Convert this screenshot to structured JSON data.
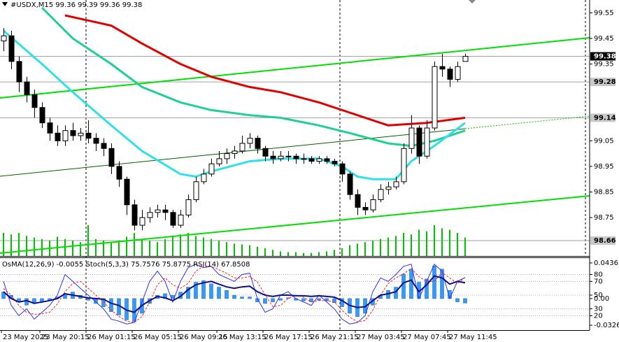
{
  "chart_data": [
    {
      "type": "candlestick",
      "title": "#USDX,M15  99.36 99.39 99.36 99.38",
      "categories": [
        "23 May 2025",
        null,
        null,
        null,
        null,
        "23 May 20:15",
        null,
        null,
        null,
        null,
        null,
        "26 May 01:15",
        null,
        null,
        null,
        null,
        null,
        "26 May 05:15",
        null,
        null,
        null,
        null,
        null,
        "26 May 09:15",
        null,
        null,
        null,
        null,
        "26 May 13:15",
        null,
        null,
        null,
        null,
        null,
        "26 May 17:15",
        null,
        null,
        null,
        null,
        null,
        "26 May 21:15",
        null,
        null,
        null,
        null,
        null,
        "27 May 03:45",
        null,
        null,
        null,
        null,
        null,
        "27 May 07:45",
        null,
        null,
        null,
        null,
        null,
        "27 May 11:45",
        null,
        null
      ],
      "open": [
        99.44,
        99.46,
        99.36,
        99.28,
        99.23,
        99.18,
        99.12,
        99.08,
        99.05,
        99.09,
        99.07,
        99.08,
        99.06,
        99.04,
        99.02,
        98.95,
        98.9,
        98.8,
        98.72,
        98.75,
        98.77,
        98.78,
        98.77,
        98.72,
        98.76,
        98.82,
        98.89,
        98.92,
        98.96,
        98.98,
        99.0,
        99.01,
        99.04,
        99.06,
        99.02,
        98.99,
        98.98,
        98.99,
        98.99,
        98.98,
        98.98,
        98.97,
        98.98,
        98.97,
        98.96,
        98.92,
        98.84,
        98.79,
        98.78,
        98.82,
        98.86,
        98.87,
        98.89,
        99.02,
        99.1,
        98.99,
        99.1,
        99.34,
        99.33,
        99.29,
        99.36
      ],
      "high": [
        99.49,
        99.48,
        99.38,
        99.3,
        99.25,
        99.2,
        99.14,
        99.11,
        99.11,
        99.12,
        99.1,
        99.13,
        99.08,
        99.06,
        99.04,
        98.97,
        98.91,
        98.82,
        98.78,
        98.79,
        98.8,
        98.8,
        98.78,
        98.78,
        98.84,
        98.91,
        98.94,
        98.98,
        99.01,
        99.02,
        99.03,
        99.07,
        99.08,
        99.07,
        99.03,
        99.01,
        99.01,
        99.01,
        99.0,
        99.0,
        98.99,
        98.99,
        98.99,
        98.98,
        98.97,
        98.93,
        98.86,
        98.81,
        98.84,
        98.88,
        98.89,
        98.91,
        99.04,
        99.15,
        99.11,
        99.13,
        99.36,
        99.39,
        99.34,
        99.36,
        99.39
      ],
      "low": [
        99.4,
        99.33,
        99.24,
        99.2,
        99.14,
        99.1,
        99.05,
        99.03,
        99.03,
        99.05,
        99.05,
        99.04,
        99.01,
        98.99,
        98.92,
        98.87,
        98.76,
        98.7,
        98.7,
        98.73,
        98.75,
        98.74,
        98.71,
        98.71,
        98.75,
        98.81,
        98.88,
        98.91,
        98.95,
        98.96,
        98.98,
        99.0,
        99.02,
        99.0,
        98.97,
        98.96,
        98.97,
        98.97,
        98.96,
        98.96,
        98.96,
        98.96,
        98.96,
        98.95,
        98.89,
        98.82,
        98.76,
        98.76,
        98.77,
        98.81,
        98.84,
        98.86,
        98.88,
        99.0,
        98.96,
        98.98,
        99.09,
        99.3,
        99.26,
        99.28,
        99.36
      ],
      "close": [
        99.46,
        99.36,
        99.28,
        99.23,
        99.18,
        99.12,
        99.08,
        99.05,
        99.09,
        99.07,
        99.08,
        99.06,
        99.04,
        99.02,
        98.95,
        98.9,
        98.8,
        98.72,
        98.75,
        98.77,
        98.78,
        98.77,
        98.72,
        98.76,
        98.82,
        98.89,
        98.92,
        98.96,
        98.98,
        99.0,
        99.01,
        99.04,
        99.06,
        99.02,
        98.99,
        98.98,
        98.99,
        98.99,
        98.98,
        98.98,
        98.97,
        98.98,
        98.97,
        98.96,
        98.92,
        98.84,
        98.79,
        98.78,
        98.82,
        98.86,
        98.87,
        98.89,
        99.02,
        99.1,
        98.99,
        99.1,
        99.34,
        99.33,
        99.29,
        99.34,
        99.38
      ],
      "volume": [
        30,
        28,
        30,
        26,
        24,
        22,
        20,
        25,
        22,
        20,
        18,
        40,
        22,
        20,
        18,
        20,
        25,
        30,
        22,
        20,
        18,
        22,
        25,
        28,
        30,
        26,
        24,
        22,
        20,
        18,
        16,
        15,
        14,
        12,
        10,
        8,
        6,
        5,
        5,
        4,
        4,
        5,
        6,
        8,
        10,
        14,
        16,
        18,
        20,
        22,
        24,
        26,
        30,
        28,
        34,
        32,
        40,
        36,
        34,
        30,
        24
      ],
      "color_up": "#ffffff",
      "color_down": "#000000",
      "volume_color": "#00c000",
      "ylim": [
        98.6,
        99.6
      ],
      "yticks": [
        99.55,
        99.45,
        99.35,
        99.05,
        98.95,
        98.85,
        98.75
      ],
      "levels": [
        99.38,
        99.28,
        99.14,
        98.66
      ],
      "series": [
        {
          "color": "#e00000",
          "x": [
            8,
            14,
            18,
            23,
            27,
            32,
            36,
            41,
            45,
            50,
            55,
            60
          ],
          "values": [
            99.54,
            99.5,
            99.43,
            99.35,
            99.3,
            99.26,
            99.24,
            99.2,
            99.16,
            99.11,
            99.12,
            99.14
          ]
        },
        {
          "color": "#20d090",
          "x": [
            5,
            9,
            14,
            18,
            23,
            27,
            32,
            36,
            41,
            45,
            50,
            53,
            56,
            60
          ],
          "values": [
            99.57,
            99.45,
            99.35,
            99.26,
            99.2,
            99.17,
            99.15,
            99.14,
            99.11,
            99.08,
            99.04,
            99.03,
            99.05,
            99.09
          ]
        },
        {
          "color": "#30e0e8",
          "x": [
            0,
            5,
            9,
            14,
            18,
            23,
            25,
            27,
            32,
            36,
            41,
            44,
            46,
            48,
            51,
            53,
            56,
            60
          ],
          "values": [
            99.48,
            99.35,
            99.24,
            99.11,
            99.01,
            98.92,
            98.91,
            98.93,
            98.97,
            98.98,
            98.98,
            98.95,
            98.91,
            98.9,
            98.9,
            98.97,
            99.03,
            99.12
          ]
        }
      ]
    },
    {
      "type": "indicator",
      "title": "OsMA(12,26,9) -0.0055  Stoch(5,3,3) 75.7576 75.8775  RSI(14) 67.8508",
      "ylim": [
        -1,
        105
      ],
      "yticks": [
        80,
        70,
        50,
        30,
        20
      ],
      "y2lim": [
        -0.0386,
        0.0504
      ],
      "y2ticks": [
        0.0436,
        {
          "value": 0,
          "label": "0.00"
        },
        -0.0326
      ],
      "series": [
        {
          "kind": "histogram",
          "axis": "y2",
          "color": "#2f9bff",
          "values": [
            0.008,
            0.004,
            -0.004,
            -0.008,
            -0.006,
            -0.004,
            -0.002,
            0.002,
            0.006,
            0.008,
            0.004,
            -0.002,
            -0.006,
            -0.01,
            -0.016,
            -0.02,
            -0.026,
            -0.028,
            -0.018,
            -0.006,
            0.004,
            0.006,
            0.004,
            0.008,
            0.014,
            0.02,
            0.022,
            0.018,
            0.014,
            0.01,
            0.004,
            0.002,
            0.002,
            -0.004,
            -0.006,
            -0.004,
            -0.002,
            0.001,
            -0.002,
            -0.003,
            -0.004,
            -0.002,
            -0.003,
            -0.005,
            -0.01,
            -0.018,
            -0.022,
            -0.018,
            -0.008,
            0.004,
            0.01,
            0.014,
            0.03,
            0.036,
            0.02,
            0.024,
            0.04,
            0.036,
            0.01,
            -0.004,
            -0.0055
          ]
        },
        {
          "kind": "line",
          "color": "#3030ff",
          "values": [
            70,
            35,
            20,
            30,
            15,
            25,
            35,
            50,
            80,
            70,
            60,
            50,
            40,
            30,
            15,
            12,
            8,
            10,
            40,
            70,
            85,
            70,
            40,
            70,
            90,
            95,
            90,
            92,
            80,
            75,
            70,
            80,
            82,
            45,
            25,
            30,
            50,
            55,
            45,
            40,
            35,
            50,
            40,
            30,
            15,
            8,
            10,
            20,
            55,
            75,
            70,
            80,
            92,
            95,
            45,
            70,
            95,
            85,
            45,
            70,
            75.7576
          ]
        },
        {
          "kind": "line",
          "style": "dashed",
          "color": "#ff2020",
          "values": [
            60,
            50,
            35,
            25,
            22,
            23,
            25,
            37,
            55,
            67,
            70,
            60,
            50,
            40,
            28,
            19,
            12,
            10,
            19,
            40,
            65,
            75,
            65,
            60,
            67,
            85,
            92,
            92,
            87,
            82,
            75,
            75,
            77,
            69,
            51,
            33,
            35,
            45,
            50,
            47,
            40,
            42,
            42,
            40,
            28,
            18,
            11,
            13,
            28,
            50,
            67,
            75,
            81,
            89,
            77,
            70,
            70,
            83,
            75,
            67,
            75.8775
          ]
        },
        {
          "kind": "line",
          "width": 2,
          "color": "#10108a",
          "values": [
            55,
            45,
            40,
            42,
            38,
            40,
            42,
            45,
            52,
            50,
            48,
            46,
            45,
            44,
            38,
            35,
            28,
            25,
            35,
            42,
            48,
            46,
            42,
            48,
            58,
            65,
            68,
            70,
            66,
            62,
            60,
            62,
            63,
            55,
            50,
            48,
            50,
            50,
            49,
            49,
            48,
            49,
            48,
            47,
            42,
            35,
            32,
            33,
            42,
            50,
            52,
            55,
            68,
            72,
            55,
            65,
            78,
            75,
            66,
            70,
            67.8508
          ]
        }
      ]
    }
  ]
}
